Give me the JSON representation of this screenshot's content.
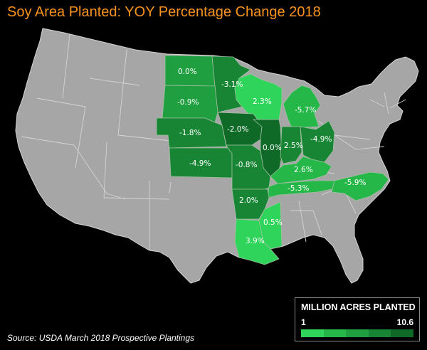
{
  "title": "Soy Area Planted: YOY Percentage Change 2018",
  "source": "Source: USDA March 2018 Prospective Plantings",
  "legend": {
    "title": "MILLION ACRES PLANTED",
    "min": "1",
    "max": "10.6",
    "colors": [
      "#2fd45a",
      "#25b849",
      "#1f9f3f",
      "#178534",
      "#0f6a28"
    ]
  },
  "colors": {
    "background": "#000000",
    "title": "#f7931e",
    "land": "#a6a6a6"
  },
  "states": [
    {
      "id": "north-dakota",
      "label": "0.0%"
    },
    {
      "id": "minnesota",
      "label": "-3.1%"
    },
    {
      "id": "south-dakota",
      "label": "-0.9%"
    },
    {
      "id": "wisconsin",
      "label": "2.3%"
    },
    {
      "id": "michigan",
      "label": "-5.7%"
    },
    {
      "id": "nebraska",
      "label": "-1.8%"
    },
    {
      "id": "iowa",
      "label": "-2.0%"
    },
    {
      "id": "illinois",
      "label": "0.0%"
    },
    {
      "id": "indiana",
      "label": "2.5%"
    },
    {
      "id": "ohio",
      "label": "-4.9%"
    },
    {
      "id": "kansas",
      "label": "-4.9%"
    },
    {
      "id": "missouri",
      "label": "-0.8%"
    },
    {
      "id": "kentucky",
      "label": "2.6%"
    },
    {
      "id": "tennessee",
      "label": "-5.3%"
    },
    {
      "id": "north-carolina",
      "label": "-5.9%"
    },
    {
      "id": "arkansas",
      "label": "2.0%"
    },
    {
      "id": "mississippi",
      "label": "0.5%"
    },
    {
      "id": "louisiana",
      "label": "3.9%"
    }
  ]
}
